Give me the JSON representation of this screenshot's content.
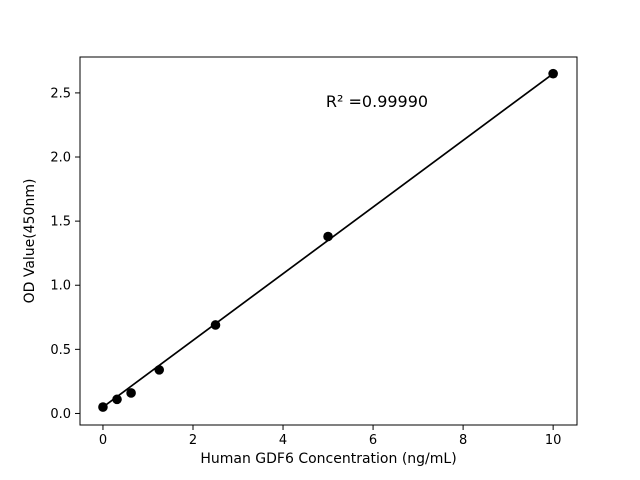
{
  "chart_data": {
    "type": "scatter",
    "title": "",
    "xlabel": "Human GDF6 Concentration (ng/mL)",
    "ylabel": "OD Value(450nm)",
    "x": [
      0,
      0.3125,
      0.625,
      1.25,
      2.5,
      5,
      10
    ],
    "y": [
      0.05,
      0.11,
      0.16,
      0.34,
      0.69,
      1.38,
      2.65
    ],
    "series_name": "Human GDF6 standard curve",
    "trendline": {
      "x": [
        0,
        10
      ],
      "y": [
        0.05,
        2.65
      ]
    },
    "annotation": {
      "text": "R² =0.99990"
    },
    "xlim": [
      -0.51,
      10.53
    ],
    "ylim": [
      -0.09,
      2.78
    ],
    "xticks": [
      0,
      2,
      4,
      6,
      8,
      10
    ],
    "xtick_labels": [
      "0",
      "2",
      "4",
      "6",
      "8",
      "10"
    ],
    "yticks": [
      0.0,
      0.5,
      1.0,
      1.5,
      2.0,
      2.5
    ],
    "ytick_labels": [
      "0.0",
      "0.5",
      "1.0",
      "1.5",
      "2.0",
      "2.5"
    ],
    "grid": false,
    "legend": null,
    "marker_color": "#000000",
    "line_color": "#000000",
    "background_color": "#ffffff",
    "spine_color": "#000000"
  }
}
